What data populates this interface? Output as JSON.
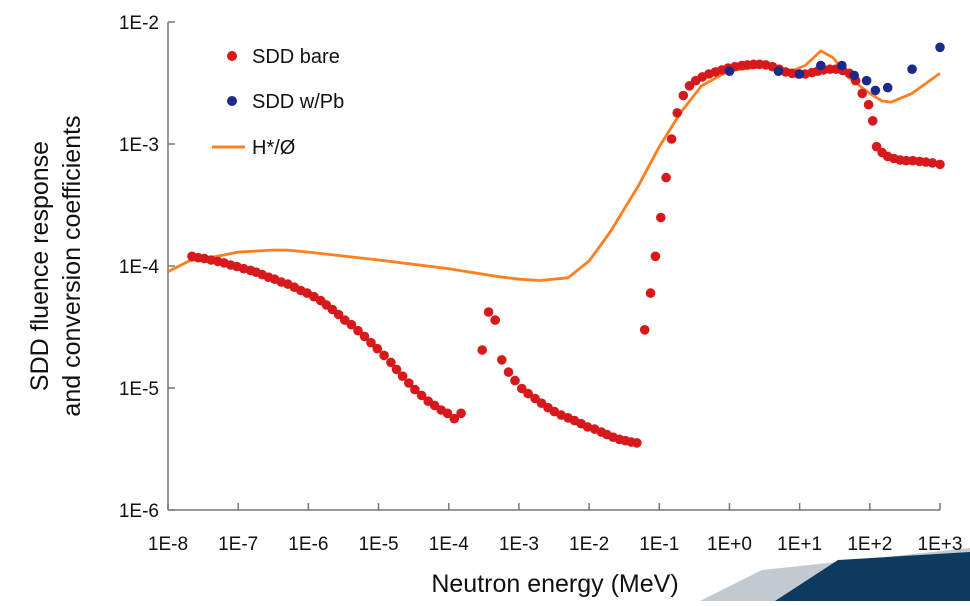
{
  "chart_data": {
    "type": "scatter",
    "xlabel": "Neutron energy (MeV)",
    "ylabel_lines": [
      "SDD fluence response",
      "and conversion coefficients"
    ],
    "x_scale": "log",
    "y_scale": "log",
    "xlim": [
      1e-08,
      1000
    ],
    "ylim": [
      1e-06,
      0.01
    ],
    "x_ticks": [
      "1E-8",
      "1E-7",
      "1E-6",
      "1E-5",
      "1E-4",
      "1E-3",
      "1E-2",
      "1E-1",
      "1E+0",
      "1E+1",
      "1E+2",
      "1E+3"
    ],
    "y_ticks": [
      "1E-2",
      "1E-3",
      "1E-4",
      "1E-5",
      "1E-6"
    ],
    "grid": false,
    "legend_position": "top-left",
    "series": [
      {
        "name": "SDD bare",
        "kind": "markers",
        "color": "#d7191c",
        "points": [
          [
            2.2e-08,
            0.00012
          ],
          [
            2.7e-08,
            0.000117
          ],
          [
            3.3e-08,
            0.000115
          ],
          [
            4.1e-08,
            0.000112
          ],
          [
            5.1e-08,
            0.000109
          ],
          [
            6.3e-08,
            0.000106
          ],
          [
            7.8e-08,
            0.000102
          ],
          [
            9.6e-08,
            9.9e-05
          ],
          [
            1.2e-07,
            9.5e-05
          ],
          [
            1.5e-07,
            9.2e-05
          ],
          [
            1.8e-07,
            8.9e-05
          ],
          [
            2.2e-07,
            8.5e-05
          ],
          [
            2.7e-07,
            8.1e-05
          ],
          [
            3.3e-07,
            7.8e-05
          ],
          [
            4.1e-07,
            7.4e-05
          ],
          [
            5.1e-07,
            7.1e-05
          ],
          [
            6.3e-07,
            6.7e-05
          ],
          [
            7.8e-07,
            6.3e-05
          ],
          [
            9.6e-07,
            6e-05
          ],
          [
            1.2e-06,
            5.6e-05
          ],
          [
            1.5e-06,
            5.2e-05
          ],
          [
            1.8e-06,
            4.8e-05
          ],
          [
            2.2e-06,
            4.4e-05
          ],
          [
            2.7e-06,
            4e-05
          ],
          [
            3.3e-06,
            3.6e-05
          ],
          [
            4.1e-06,
            3.3e-05
          ],
          [
            5.1e-06,
            2.95e-05
          ],
          [
            6.3e-06,
            2.65e-05
          ],
          [
            7.8e-06,
            2.35e-05
          ],
          [
            9.6e-06,
            2.1e-05
          ],
          [
            1.2e-05,
            1.85e-05
          ],
          [
            1.5e-05,
            1.62e-05
          ],
          [
            1.8e-05,
            1.42e-05
          ],
          [
            2.2e-05,
            1.25e-05
          ],
          [
            2.7e-05,
            1.1e-05
          ],
          [
            3.3e-05,
            9.7e-06
          ],
          [
            4.1e-05,
            8.7e-06
          ],
          [
            5.1e-05,
            7.8e-06
          ],
          [
            6.3e-05,
            7.2e-06
          ],
          [
            7.8e-05,
            6.6e-06
          ],
          [
            9.6e-05,
            6.2e-06
          ],
          [
            0.00012,
            5.6e-06
          ],
          [
            0.00015,
            6.2e-06
          ],
          [
            0.0003,
            2.05e-05
          ],
          [
            0.00037,
            4.2e-05
          ],
          [
            0.00046,
            3.6e-05
          ],
          [
            0.00057,
            1.7e-05
          ],
          [
            0.00071,
            1.35e-05
          ],
          [
            0.00088,
            1.15e-05
          ],
          [
            0.0011,
            9.9e-06
          ],
          [
            0.00135,
            9e-06
          ],
          [
            0.0017,
            8.2e-06
          ],
          [
            0.0021,
            7.5e-06
          ],
          [
            0.0026,
            6.9e-06
          ],
          [
            0.0032,
            6.4e-06
          ],
          [
            0.004,
            6e-06
          ],
          [
            0.005,
            5.7e-06
          ],
          [
            0.0062,
            5.4e-06
          ],
          [
            0.0077,
            5.1e-06
          ],
          [
            0.0095,
            4.8e-06
          ],
          [
            0.012,
            4.6e-06
          ],
          [
            0.015,
            4.35e-06
          ],
          [
            0.018,
            4.15e-06
          ],
          [
            0.022,
            3.95e-06
          ],
          [
            0.027,
            3.8e-06
          ],
          [
            0.033,
            3.7e-06
          ],
          [
            0.04,
            3.6e-06
          ],
          [
            0.048,
            3.55e-06
          ],
          [
            0.062,
            3e-05
          ],
          [
            0.075,
            6e-05
          ],
          [
            0.088,
            0.00012
          ],
          [
            0.105,
            0.00025
          ],
          [
            0.125,
            0.00053
          ],
          [
            0.15,
            0.0011
          ],
          [
            0.18,
            0.0018
          ],
          [
            0.22,
            0.0025
          ],
          [
            0.27,
            0.003
          ],
          [
            0.33,
            0.0033
          ],
          [
            0.41,
            0.00355
          ],
          [
            0.51,
            0.00375
          ],
          [
            0.63,
            0.0039
          ],
          [
            0.78,
            0.00405
          ],
          [
            0.96,
            0.0042
          ],
          [
            1.2,
            0.0043
          ],
          [
            1.5,
            0.0044
          ],
          [
            1.8,
            0.00445
          ],
          [
            2.2,
            0.0045
          ],
          [
            2.7,
            0.0045
          ],
          [
            3.3,
            0.00445
          ],
          [
            4.1,
            0.0043
          ],
          [
            5.1,
            0.0041
          ],
          [
            6.3,
            0.0039
          ],
          [
            7.8,
            0.0038
          ],
          [
            9.6,
            0.00375
          ],
          [
            12,
            0.00375
          ],
          [
            15,
            0.00385
          ],
          [
            18,
            0.00395
          ],
          [
            22,
            0.00405
          ],
          [
            27,
            0.0041
          ],
          [
            33,
            0.0041
          ],
          [
            41,
            0.004
          ],
          [
            51,
            0.0038
          ],
          [
            63,
            0.0033
          ],
          [
            78,
            0.0026
          ],
          [
            96,
            0.0021
          ],
          [
            110,
            0.00155
          ],
          [
            125,
            0.00095
          ],
          [
            150,
            0.00085
          ],
          [
            180,
            0.00079
          ],
          [
            220,
            0.00076
          ],
          [
            270,
            0.00074
          ],
          [
            330,
            0.00073
          ],
          [
            410,
            0.00073
          ],
          [
            510,
            0.00072
          ],
          [
            630,
            0.00071
          ],
          [
            780,
            0.0007
          ],
          [
            1000,
            0.00068
          ]
        ]
      },
      {
        "name": "SDD w/Pb",
        "kind": "markers",
        "color": "#1a2a8a",
        "points": [
          [
            1,
            0.00395
          ],
          [
            5,
            0.00395
          ],
          [
            10,
            0.00375
          ],
          [
            20,
            0.0044
          ],
          [
            40,
            0.0044
          ],
          [
            60,
            0.00365
          ],
          [
            90,
            0.0033
          ],
          [
            120,
            0.00275
          ],
          [
            180,
            0.0029
          ],
          [
            400,
            0.0041
          ],
          [
            1000,
            0.0062
          ]
        ]
      },
      {
        "name": "H*/Ø",
        "kind": "line",
        "color": "#ff7f1e",
        "points": [
          [
            1e-08,
            9e-05
          ],
          [
            2e-08,
            0.00011
          ],
          [
            5e-08,
            0.00012
          ],
          [
            1e-07,
            0.00013
          ],
          [
            3e-07,
            0.000135
          ],
          [
            5e-07,
            0.000135
          ],
          [
            1e-06,
            0.00013
          ],
          [
            1e-05,
            0.000112
          ],
          [
            0.0001,
            9.5e-05
          ],
          [
            0.0005,
            8.2e-05
          ],
          [
            0.001,
            7.8e-05
          ],
          [
            0.002,
            7.6e-05
          ],
          [
            0.005,
            8e-05
          ],
          [
            0.01,
            0.00011
          ],
          [
            0.02,
            0.00019
          ],
          [
            0.05,
            0.00045
          ],
          [
            0.1,
            0.00095
          ],
          [
            0.2,
            0.0018
          ],
          [
            0.4,
            0.003
          ],
          [
            1,
            0.004
          ],
          [
            3,
            0.0043
          ],
          [
            8,
            0.004
          ],
          [
            12,
            0.0044
          ],
          [
            20,
            0.0058
          ],
          [
            30,
            0.0051
          ],
          [
            50,
            0.0035
          ],
          [
            100,
            0.0026
          ],
          [
            150,
            0.00225
          ],
          [
            200,
            0.0022
          ],
          [
            400,
            0.0026
          ],
          [
            1000,
            0.0038
          ]
        ]
      }
    ]
  }
}
